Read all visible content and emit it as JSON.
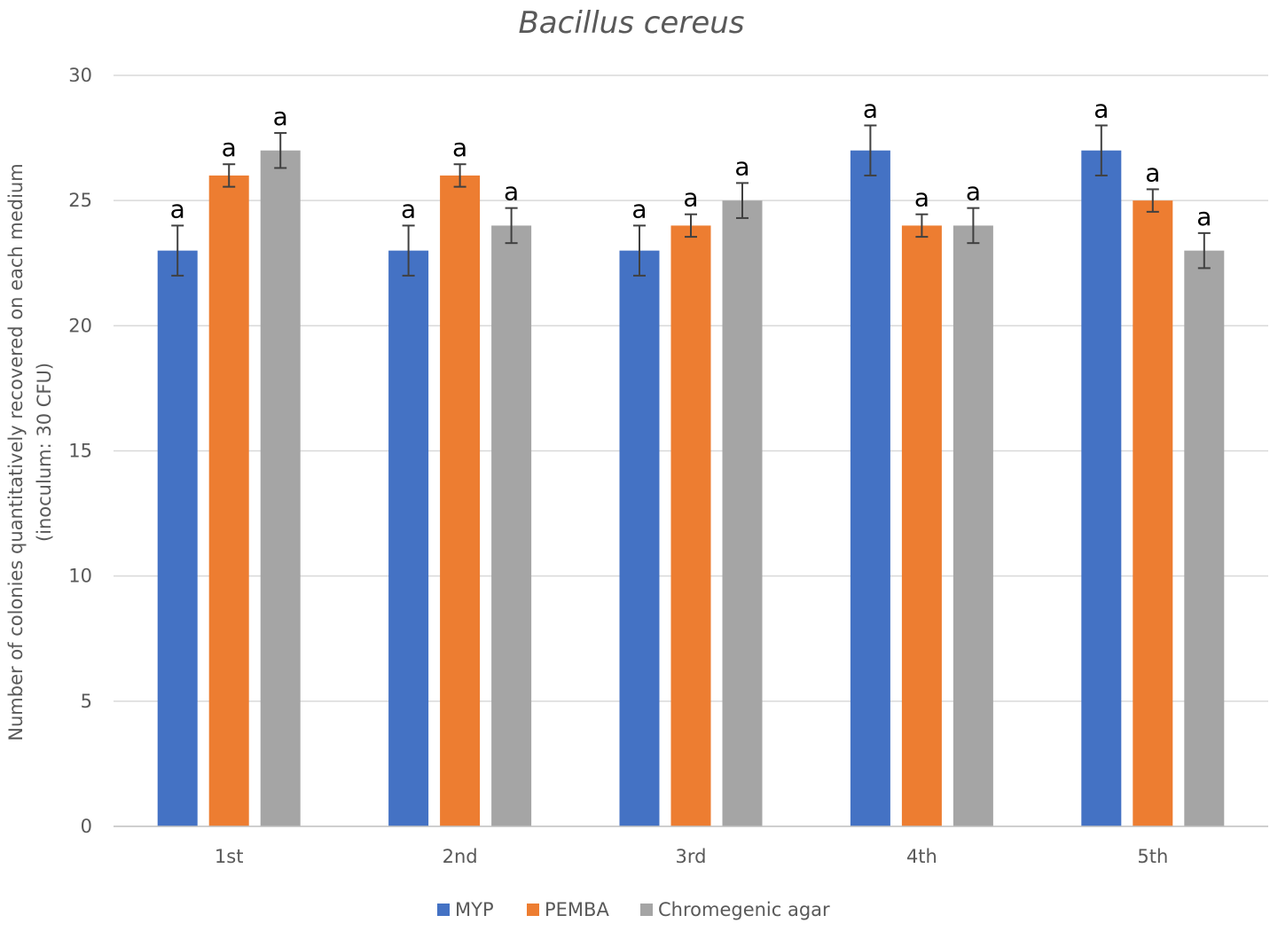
{
  "chart_data": {
    "type": "bar",
    "title": "Bacillus cereus",
    "ylabel_line1": "Number of colonies quantitatively recovered on each medium",
    "ylabel_line2": "(inoculum: 30 CFU)",
    "xlabel": "",
    "ylim": [
      0,
      30
    ],
    "yticks": [
      0,
      5,
      10,
      15,
      20,
      25,
      30
    ],
    "grid": true,
    "legend_position": "bottom",
    "categories": [
      "1st",
      "2nd",
      "3rd",
      "4th",
      "5th"
    ],
    "series": [
      {
        "name": "MYP",
        "color": "#4472c4",
        "values": [
          23,
          23,
          23,
          27,
          27
        ],
        "errors": [
          1,
          1,
          1,
          1,
          1
        ],
        "labels": [
          "a",
          "a",
          "a",
          "a",
          "a"
        ]
      },
      {
        "name": "PEMBA",
        "color": "#ed7d31",
        "values": [
          26,
          26,
          24,
          24,
          25
        ],
        "errors": [
          0.45,
          0.45,
          0.45,
          0.45,
          0.45
        ],
        "labels": [
          "a",
          "a",
          "a",
          "a",
          "a"
        ]
      },
      {
        "name": "Chromegenic agar",
        "color": "#a5a5a5",
        "values": [
          27,
          24,
          25,
          24,
          23
        ],
        "errors": [
          0.7,
          0.7,
          0.7,
          0.7,
          0.7
        ],
        "labels": [
          "a",
          "a",
          "a",
          "a",
          "a"
        ]
      }
    ]
  }
}
